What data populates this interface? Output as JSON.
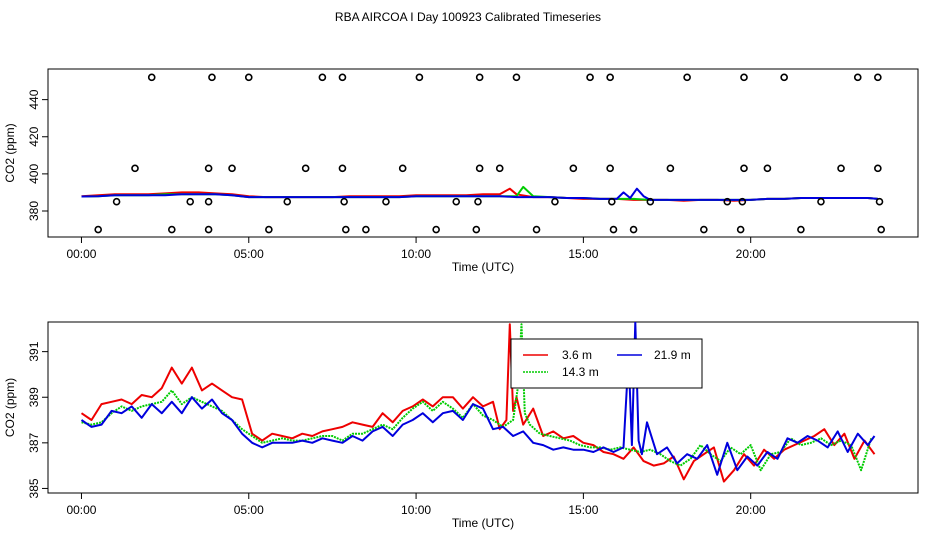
{
  "page": {
    "title": "RBA AIRCOA I  Day 100923  Calibrated Timeseries"
  },
  "colors": {
    "red": "#ee0000",
    "green": "#00cc00",
    "blue": "#0000dd",
    "axis": "#000000"
  },
  "chart_data": [
    {
      "type": "scatter+line",
      "title": "",
      "xlabel": "Time (UTC)",
      "ylabel": "CO2 (ppm)",
      "xlim": [
        -1.0,
        25.0
      ],
      "ylim": [
        366.0,
        456.5
      ],
      "x_ticks": [
        0,
        5,
        10,
        15,
        20
      ],
      "x_tick_labels": [
        "00:00",
        "05:00",
        "10:00",
        "15:00",
        "20:00"
      ],
      "y_ticks": [
        380,
        400,
        420,
        440
      ],
      "y_tick_labels": [
        "380",
        "400",
        "420",
        "440"
      ],
      "calibration_points": {
        "marker": "open-circle",
        "x": [
          2.1,
          3.9,
          5.0,
          7.2,
          7.8,
          10.1,
          11.9,
          13.0,
          15.2,
          15.8,
          18.1,
          19.8,
          21.0,
          23.2,
          23.8,
          1.6,
          3.8,
          4.5,
          6.7,
          7.8,
          9.6,
          11.9,
          12.5,
          14.7,
          15.8,
          17.6,
          19.8,
          20.5,
          22.7,
          23.8,
          1.05,
          3.25,
          3.8,
          6.15,
          7.85,
          9.1,
          11.2,
          11.85,
          14.15,
          15.85,
          17.0,
          19.3,
          19.75,
          22.1,
          23.85,
          0.5,
          2.7,
          3.8,
          5.6,
          7.9,
          8.5,
          10.6,
          11.8,
          13.6,
          15.9,
          16.5,
          18.6,
          19.7,
          21.5,
          23.9
        ],
        "y": [
          452,
          452,
          452,
          452,
          452,
          452,
          452,
          452,
          452,
          452,
          452,
          452,
          452,
          452,
          452,
          403,
          403,
          403,
          403,
          403,
          403,
          403,
          403,
          403,
          403,
          403,
          403,
          403,
          403,
          403,
          385,
          385,
          385,
          385,
          385,
          385,
          385,
          385,
          385,
          385,
          385,
          385,
          385,
          385,
          385,
          370,
          370,
          370,
          370,
          370,
          370,
          370,
          370,
          370,
          370,
          370,
          370,
          370,
          370,
          370
        ]
      },
      "series": [
        {
          "name": "3.6 m",
          "color": "#ee0000",
          "x": [
            0,
            0.5,
            1,
            1.5,
            2,
            2.5,
            3,
            3.5,
            4,
            4.5,
            5,
            5.5,
            6,
            6.5,
            7,
            7.5,
            8,
            8.5,
            9,
            9.5,
            10,
            10.5,
            11,
            11.5,
            12,
            12.5,
            12.8,
            13,
            13.5,
            14,
            14.5,
            15,
            15.5,
            16,
            16.5,
            17,
            17.5,
            18,
            18.5,
            19,
            19.5,
            20,
            20.5,
            21,
            21.5,
            22,
            22.5,
            23,
            23.5,
            23.8
          ],
          "values": [
            388,
            388.5,
            389,
            389,
            389,
            389.5,
            390,
            390,
            389.5,
            389,
            388,
            387.5,
            387.5,
            387.5,
            387.5,
            387.5,
            388,
            388,
            388,
            388,
            388.5,
            388.5,
            388.5,
            388.5,
            389,
            389,
            392,
            389,
            387.5,
            387.5,
            387,
            386.5,
            386.5,
            386.5,
            386,
            386,
            386,
            385.5,
            386,
            386,
            385.5,
            386,
            386.5,
            386.5,
            387,
            387,
            387,
            387,
            387,
            386.5
          ]
        },
        {
          "name": "14.3 m",
          "color": "#00cc00",
          "x": [
            0,
            0.5,
            1,
            1.5,
            2,
            2.5,
            3,
            3.5,
            4,
            4.5,
            5,
            5.5,
            6,
            6.5,
            7,
            7.5,
            8,
            8.5,
            9,
            9.5,
            10,
            10.5,
            11,
            11.5,
            12,
            12.5,
            13,
            13.2,
            13.5,
            14,
            14.5,
            15,
            15.5,
            16,
            16.5,
            17,
            17.5,
            18,
            18.5,
            19,
            19.5,
            20,
            20.5,
            21,
            21.5,
            22,
            22.5,
            23,
            23.5,
            23.8
          ],
          "values": [
            387.8,
            388,
            388.5,
            388.5,
            388.5,
            389,
            389,
            389,
            389,
            388.5,
            387.5,
            387.5,
            387.5,
            387.5,
            387.5,
            387.5,
            387.5,
            387.5,
            387.5,
            387.5,
            388,
            388,
            388,
            388,
            388,
            388,
            388,
            393,
            388,
            387.5,
            387,
            387,
            386.5,
            386.5,
            386.5,
            386,
            386,
            386,
            386,
            386,
            386,
            386,
            386.5,
            386.5,
            387,
            387,
            387,
            387,
            387,
            386.5
          ]
        },
        {
          "name": "21.9 m",
          "color": "#0000dd",
          "x": [
            0,
            0.5,
            1,
            1.5,
            2,
            2.5,
            3,
            3.5,
            4,
            4.5,
            5,
            5.5,
            6,
            6.5,
            7,
            7.5,
            8,
            8.5,
            9,
            9.5,
            10,
            10.5,
            11,
            11.5,
            12,
            12.5,
            13,
            13.5,
            14,
            14.5,
            15,
            15.5,
            16,
            16.2,
            16.4,
            16.6,
            16.8,
            17,
            17.5,
            18,
            18.5,
            19,
            19.5,
            20,
            20.5,
            21,
            21.5,
            22,
            22.5,
            23,
            23.5,
            23.8
          ],
          "values": [
            387.8,
            388,
            388.5,
            388.5,
            388.5,
            388.5,
            389,
            389,
            389,
            388.5,
            387.5,
            387.5,
            387.5,
            387.5,
            387.5,
            387.5,
            387.5,
            387.5,
            387.5,
            387.5,
            388,
            388,
            388,
            388,
            388,
            388,
            387.5,
            387.5,
            387.5,
            387,
            387,
            386.5,
            386.5,
            390,
            387,
            392,
            388,
            386,
            386,
            386,
            386,
            386,
            386,
            386,
            386.5,
            386.5,
            387,
            387,
            387,
            387,
            387,
            386.5
          ]
        }
      ]
    },
    {
      "type": "line",
      "title": "",
      "xlabel": "Time (UTC)",
      "ylabel": "CO2 (ppm)",
      "xlim": [
        -1.0,
        25.0
      ],
      "ylim": [
        384.8,
        392.3
      ],
      "x_ticks": [
        0,
        5,
        10,
        15,
        20
      ],
      "x_tick_labels": [
        "00:00",
        "05:00",
        "10:00",
        "15:00",
        "20:00"
      ],
      "y_ticks": [
        385,
        387,
        389,
        391
      ],
      "y_tick_labels": [
        "385",
        "387",
        "389",
        "391"
      ],
      "legend": {
        "position": "top-center",
        "entries": [
          {
            "label": "3.6 m",
            "color": "#ee0000",
            "style": "solid"
          },
          {
            "label": "14.3 m",
            "color": "#00cc00",
            "style": "dotted"
          },
          {
            "label": "21.9 m",
            "color": "#0000dd",
            "style": "solid"
          }
        ]
      },
      "series": [
        {
          "name": "3.6 m",
          "color": "#ee0000",
          "x": [
            0,
            0.3,
            0.6,
            0.9,
            1.2,
            1.5,
            1.8,
            2.1,
            2.4,
            2.7,
            3.0,
            3.3,
            3.6,
            3.9,
            4.2,
            4.5,
            4.8,
            5.1,
            5.4,
            5.7,
            6.0,
            6.3,
            6.6,
            6.9,
            7.2,
            7.5,
            7.8,
            8.1,
            8.4,
            8.7,
            9.0,
            9.3,
            9.6,
            9.9,
            10.2,
            10.5,
            10.8,
            11.1,
            11.4,
            11.7,
            12.0,
            12.3,
            12.5,
            12.7,
            12.8,
            12.9,
            13.0,
            13.2,
            13.5,
            13.8,
            14.1,
            14.4,
            14.7,
            15.0,
            15.3,
            15.6,
            15.9,
            16.2,
            16.5,
            16.8,
            17.1,
            17.4,
            17.7,
            18.0,
            18.3,
            18.6,
            18.9,
            19.2,
            19.5,
            19.8,
            20.1,
            20.4,
            20.7,
            21.0,
            21.3,
            21.6,
            21.9,
            22.2,
            22.5,
            22.8,
            23.1,
            23.4,
            23.7
          ],
          "values": [
            388.3,
            388.0,
            388.7,
            388.8,
            388.9,
            388.7,
            389.1,
            389.0,
            389.4,
            390.3,
            389.6,
            390.3,
            389.3,
            389.6,
            389.3,
            389.0,
            388.9,
            387.4,
            387.1,
            387.4,
            387.3,
            387.2,
            387.4,
            387.3,
            387.5,
            387.6,
            387.7,
            387.9,
            387.8,
            387.7,
            388.3,
            387.9,
            388.4,
            388.6,
            388.9,
            388.6,
            389.0,
            389.0,
            388.5,
            389.0,
            388.6,
            388.8,
            387.6,
            388.0,
            392.2,
            388.4,
            389.0,
            387.8,
            388.5,
            387.3,
            387.5,
            387.2,
            387.3,
            387.0,
            386.9,
            386.6,
            386.5,
            386.3,
            386.8,
            386.2,
            386.0,
            386.1,
            386.4,
            385.4,
            386.2,
            386.5,
            386.8,
            385.3,
            385.8,
            386.5,
            386.0,
            386.7,
            386.3,
            386.7,
            386.9,
            387.1,
            387.3,
            387.6,
            386.9,
            387.4,
            386.3,
            387.1,
            386.5
          ]
        },
        {
          "name": "14.3 m",
          "color": "#00cc00",
          "x": [
            0,
            0.3,
            0.6,
            0.9,
            1.2,
            1.5,
            1.8,
            2.1,
            2.4,
            2.7,
            3.0,
            3.3,
            3.6,
            3.9,
            4.2,
            4.5,
            4.8,
            5.1,
            5.4,
            5.7,
            6.0,
            6.3,
            6.6,
            6.9,
            7.2,
            7.5,
            7.8,
            8.1,
            8.4,
            8.7,
            9.0,
            9.3,
            9.6,
            9.9,
            10.2,
            10.5,
            10.8,
            11.1,
            11.4,
            11.7,
            12.0,
            12.3,
            12.6,
            12.9,
            13.05,
            13.15,
            13.25,
            13.4,
            13.7,
            14.0,
            14.3,
            14.6,
            14.9,
            15.2,
            15.5,
            15.8,
            16.1,
            16.4,
            16.7,
            17.0,
            17.3,
            17.6,
            17.9,
            18.2,
            18.5,
            18.8,
            19.1,
            19.4,
            19.7,
            20.0,
            20.3,
            20.6,
            20.9,
            21.2,
            21.5,
            21.8,
            22.1,
            22.4,
            22.7,
            23.0,
            23.3,
            23.6
          ],
          "values": [
            387.9,
            387.8,
            387.9,
            388.3,
            388.6,
            388.4,
            388.6,
            388.7,
            388.8,
            389.3,
            388.7,
            389.0,
            388.8,
            388.6,
            388.4,
            388.0,
            387.6,
            387.3,
            387.0,
            387.1,
            387.2,
            387.1,
            387.1,
            387.2,
            387.3,
            387.3,
            387.1,
            387.4,
            387.4,
            387.6,
            387.8,
            387.6,
            388.1,
            388.5,
            388.8,
            388.4,
            388.8,
            388.5,
            388.1,
            388.7,
            388.2,
            388.0,
            387.7,
            388.0,
            389.5,
            392.2,
            388.3,
            387.8,
            387.4,
            387.3,
            387.2,
            387.1,
            386.9,
            386.8,
            386.8,
            386.7,
            386.8,
            386.7,
            386.6,
            386.7,
            386.5,
            386.2,
            386.0,
            386.3,
            386.9,
            386.5,
            386.2,
            386.8,
            386.5,
            386.9,
            385.8,
            386.5,
            386.6,
            387.2,
            386.9,
            387.0,
            387.2,
            386.9,
            387.1,
            386.9,
            385.8,
            387.2
          ]
        },
        {
          "name": "21.9 m",
          "color": "#0000dd",
          "x": [
            0,
            0.3,
            0.6,
            0.9,
            1.2,
            1.5,
            1.8,
            2.1,
            2.4,
            2.7,
            3.0,
            3.3,
            3.6,
            3.9,
            4.2,
            4.5,
            4.8,
            5.1,
            5.4,
            5.7,
            6.0,
            6.3,
            6.6,
            6.9,
            7.2,
            7.5,
            7.8,
            8.1,
            8.4,
            8.7,
            9.0,
            9.3,
            9.6,
            9.9,
            10.2,
            10.5,
            10.8,
            11.1,
            11.4,
            11.7,
            12.0,
            12.3,
            12.6,
            12.9,
            13.2,
            13.5,
            13.8,
            14.1,
            14.4,
            14.7,
            15.0,
            15.3,
            15.6,
            15.9,
            16.2,
            16.35,
            16.45,
            16.55,
            16.65,
            16.75,
            16.9,
            17.2,
            17.5,
            17.8,
            18.1,
            18.4,
            18.7,
            19.0,
            19.3,
            19.6,
            19.9,
            20.2,
            20.5,
            20.8,
            21.1,
            21.4,
            21.7,
            22.0,
            22.3,
            22.6,
            22.9,
            23.2,
            23.5,
            23.7
          ],
          "values": [
            388.0,
            387.7,
            387.8,
            388.4,
            388.3,
            388.6,
            388.1,
            388.7,
            388.3,
            388.8,
            388.3,
            389.0,
            388.5,
            388.9,
            388.3,
            388.0,
            387.4,
            387.0,
            386.8,
            387.0,
            387.0,
            387.0,
            387.1,
            387.0,
            387.2,
            387.1,
            387.0,
            387.3,
            387.1,
            387.5,
            387.7,
            387.3,
            387.8,
            388.0,
            388.3,
            387.9,
            388.3,
            388.4,
            388.0,
            388.7,
            388.5,
            387.6,
            387.7,
            387.3,
            387.5,
            387.0,
            386.9,
            386.7,
            386.8,
            386.7,
            386.7,
            386.6,
            386.8,
            386.6,
            386.8,
            390.8,
            386.9,
            392.3,
            387.1,
            386.5,
            387.9,
            386.5,
            386.8,
            386.1,
            386.5,
            386.3,
            386.9,
            385.6,
            387.0,
            385.8,
            386.4,
            386.0,
            386.6,
            386.3,
            387.2,
            387.0,
            387.3,
            387.1,
            386.8,
            387.5,
            386.6,
            387.4,
            386.9,
            387.3
          ]
        }
      ]
    }
  ]
}
